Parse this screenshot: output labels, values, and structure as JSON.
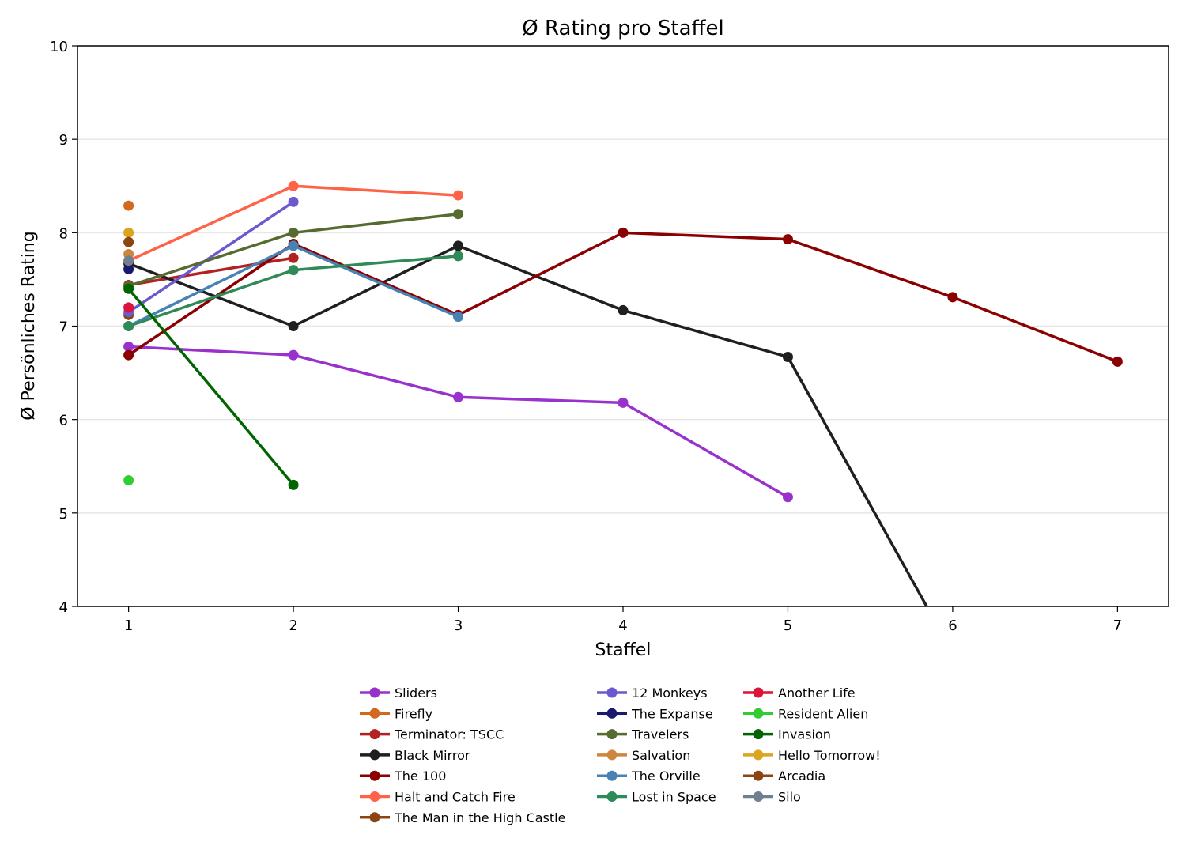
{
  "chart_data": {
    "type": "line",
    "title": "Ø Rating pro Staffel",
    "xlabel": "Staffel",
    "ylabel": "Ø Persönliches Rating",
    "xlim": [
      0.69,
      7.31
    ],
    "ylim": [
      4,
      10
    ],
    "xticks": [
      1,
      2,
      3,
      4,
      5,
      6,
      7
    ],
    "yticks": [
      4,
      5,
      6,
      7,
      8,
      9,
      10
    ],
    "grid": "horizontal",
    "legend_placement": "bottom-center",
    "series": [
      {
        "name": "Sliders",
        "color": "#9932CC",
        "x": [
          1,
          2,
          3,
          4,
          5
        ],
        "y": [
          6.78,
          6.69,
          6.24,
          6.18,
          5.17
        ]
      },
      {
        "name": "Firefly",
        "color": "#D2691E",
        "x": [
          1
        ],
        "y": [
          8.29
        ]
      },
      {
        "name": "Terminator: TSCC",
        "color": "#B22222",
        "x": [
          1,
          2
        ],
        "y": [
          7.44,
          7.73
        ]
      },
      {
        "name": "Black Mirror",
        "color": "#1F1F1F",
        "x": [
          1,
          2,
          3,
          4,
          5,
          6
        ],
        "y": [
          7.67,
          7.0,
          7.86,
          7.17,
          6.67,
          3.5
        ]
      },
      {
        "name": "The 100",
        "color": "#8B0000",
        "x": [
          1,
          2,
          3,
          4,
          5,
          6,
          7
        ],
        "y": [
          6.69,
          7.88,
          7.12,
          8.0,
          7.93,
          7.31,
          6.62
        ]
      },
      {
        "name": "Halt and Catch Fire",
        "color": "#FF6347",
        "x": [
          1,
          2,
          3
        ],
        "y": [
          7.7,
          8.5,
          8.4
        ]
      },
      {
        "name": "The Man in the High Castle",
        "color": "#8B4513",
        "x": [
          1
        ],
        "y": [
          7.12
        ]
      },
      {
        "name": "12 Monkeys",
        "color": "#6A5ACD",
        "x": [
          1,
          2
        ],
        "y": [
          7.15,
          8.33
        ]
      },
      {
        "name": "The Expanse",
        "color": "#191970",
        "x": [
          1
        ],
        "y": [
          7.61
        ]
      },
      {
        "name": "Travelers",
        "color": "#556B2F",
        "x": [
          1,
          2,
          3
        ],
        "y": [
          7.43,
          8.0,
          8.2
        ]
      },
      {
        "name": "Salvation",
        "color": "#CD853F",
        "x": [
          1
        ],
        "y": [
          7.77
        ]
      },
      {
        "name": "The Orville",
        "color": "#4682B4",
        "x": [
          1,
          2,
          3
        ],
        "y": [
          7.0,
          7.86,
          7.1
        ]
      },
      {
        "name": "Lost in Space",
        "color": "#2E8B57",
        "x": [
          1,
          2,
          3
        ],
        "y": [
          7.0,
          7.6,
          7.75
        ]
      },
      {
        "name": "Another Life",
        "color": "#DC143C",
        "x": [
          1
        ],
        "y": [
          7.2
        ]
      },
      {
        "name": "Resident Alien",
        "color": "#32CD32",
        "x": [
          1
        ],
        "y": [
          5.35
        ]
      },
      {
        "name": "Invasion",
        "color": "#006400",
        "x": [
          1,
          2
        ],
        "y": [
          7.4,
          5.3
        ]
      },
      {
        "name": "Hello Tomorrow!",
        "color": "#DAA520",
        "x": [
          1
        ],
        "y": [
          8.0
        ]
      },
      {
        "name": "Arcadia",
        "color": "#8B4513",
        "x": [
          1
        ],
        "y": [
          7.9
        ]
      },
      {
        "name": "Silo",
        "color": "#708090",
        "x": [
          1
        ],
        "y": [
          7.7
        ]
      }
    ]
  }
}
